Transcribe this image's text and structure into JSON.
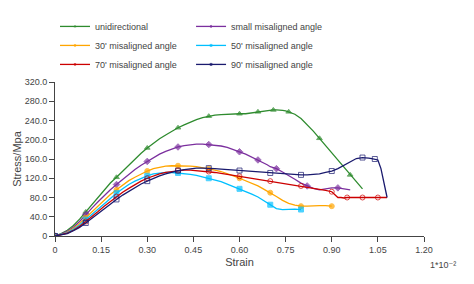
{
  "chart_data": {
    "type": "line",
    "xlabel": "Strain",
    "ylabel": "Stress/Mpa",
    "annotations": [
      "1*10⁻²"
    ],
    "xlim": [
      0,
      1.2
    ],
    "ylim": [
      0,
      320
    ],
    "xticks": [
      0,
      0.15,
      {
        "value": 0.3,
        "label": "0.30"
      },
      0.45,
      {
        "value": 0.6,
        "label": "0.60"
      },
      0.75,
      {
        "value": 0.9,
        "label": "0.90"
      },
      1.05,
      {
        "value": 1.2,
        "label": "1.20"
      }
    ],
    "yticks": [
      0,
      {
        "value": 40.0,
        "label": "40.0"
      },
      {
        "value": 80.0,
        "label": "80.0"
      },
      {
        "value": 120.0,
        "label": "120.0"
      },
      {
        "value": 160.0,
        "label": "160.0"
      },
      {
        "value": 200.0,
        "label": "200.0"
      },
      {
        "value": 240.0,
        "label": "240.0"
      },
      {
        "value": 280.0,
        "label": "280.0"
      },
      {
        "value": 320.0,
        "label": "320.0"
      }
    ],
    "grid": false,
    "legend": "top",
    "series": [
      {
        "name": "unidirectional",
        "color": "#2e8b2e",
        "marker": "triangle-up",
        "x": [
          0,
          0.02,
          0.04,
          0.06,
          0.08,
          0.1,
          0.12,
          0.14,
          0.16,
          0.18,
          0.2,
          0.22,
          0.24,
          0.26,
          0.28,
          0.3,
          0.32,
          0.34,
          0.36,
          0.38,
          0.4,
          0.42,
          0.44,
          0.46,
          0.48,
          0.5,
          0.52,
          0.54,
          0.56,
          0.58,
          0.6,
          0.62,
          0.63,
          0.64,
          0.65,
          0.66,
          0.67,
          0.68,
          0.69,
          0.7,
          0.71,
          0.72,
          0.73,
          0.74,
          0.75,
          0.76,
          0.78,
          0.8,
          0.82,
          0.84,
          0.86,
          0.88,
          0.9,
          0.92,
          0.94,
          0.96,
          0.98,
          1.0
        ],
        "values": [
          0,
          5,
          12,
          22,
          35,
          50,
          65,
          80,
          95,
          110,
          122,
          135,
          148,
          160,
          172,
          183,
          193,
          202,
          210,
          218,
          225,
          231,
          237,
          242,
          246,
          249,
          251,
          252,
          253,
          254,
          254,
          254,
          255,
          256,
          257,
          258,
          259,
          260,
          260,
          261,
          262,
          262,
          262,
          261,
          260,
          258,
          253,
          244,
          232,
          218,
          203,
          188,
          172,
          156,
          141,
          127,
          112,
          98
        ]
      },
      {
        "name": "small misaligned angle",
        "color": "#7B2F9E",
        "marker": "diamond",
        "x": [
          0,
          0.02,
          0.04,
          0.06,
          0.08,
          0.1,
          0.12,
          0.14,
          0.16,
          0.18,
          0.2,
          0.22,
          0.24,
          0.26,
          0.28,
          0.3,
          0.32,
          0.34,
          0.36,
          0.38,
          0.4,
          0.42,
          0.44,
          0.46,
          0.48,
          0.5,
          0.52,
          0.54,
          0.56,
          0.58,
          0.6,
          0.62,
          0.63,
          0.64,
          0.65,
          0.66,
          0.67,
          0.68,
          0.69,
          0.7,
          0.72,
          0.74,
          0.76,
          0.78,
          0.8,
          0.82,
          0.84,
          0.86,
          0.88,
          0.9,
          0.92,
          0.94,
          0.96
        ],
        "values": [
          0,
          4,
          10,
          18,
          30,
          45,
          58,
          71,
          84,
          96,
          107,
          118,
          128,
          138,
          147,
          155,
          163,
          170,
          176,
          181,
          185,
          188,
          190,
          191,
          191,
          190,
          189,
          187,
          184,
          180,
          175,
          170,
          167,
          164,
          161,
          158,
          155,
          151,
          148,
          144,
          140,
          133,
          126,
          118,
          110,
          104,
          99,
          96,
          98,
          100,
          100,
          98,
          96
        ]
      },
      {
        "name": "30' misaligned angle",
        "color": "#FFA500",
        "marker": "circle",
        "x": [
          0,
          0.02,
          0.04,
          0.06,
          0.08,
          0.1,
          0.12,
          0.14,
          0.16,
          0.18,
          0.2,
          0.22,
          0.24,
          0.26,
          0.28,
          0.3,
          0.32,
          0.34,
          0.36,
          0.38,
          0.4,
          0.42,
          0.44,
          0.46,
          0.48,
          0.5,
          0.52,
          0.54,
          0.56,
          0.58,
          0.6,
          0.62,
          0.64,
          0.66,
          0.68,
          0.7,
          0.72,
          0.74,
          0.76,
          0.78,
          0.8,
          0.82,
          0.84,
          0.86,
          0.88,
          0.9
        ],
        "values": [
          0,
          3,
          8,
          16,
          26,
          38,
          50,
          63,
          75,
          86,
          96,
          106,
          115,
          122,
          129,
          135,
          140,
          143,
          145,
          146,
          146,
          146,
          145,
          144,
          142,
          140,
          137,
          134,
          130,
          125,
          120,
          115,
          110,
          104,
          97,
          90,
          82,
          74,
          68,
          64,
          62,
          62,
          63,
          63,
          63,
          62
        ]
      },
      {
        "name": "50' misaligned angle",
        "color": "#00BFFF",
        "marker": "square",
        "x": [
          0,
          0.02,
          0.04,
          0.06,
          0.08,
          0.1,
          0.12,
          0.14,
          0.16,
          0.18,
          0.2,
          0.22,
          0.24,
          0.26,
          0.28,
          0.3,
          0.32,
          0.34,
          0.36,
          0.38,
          0.4,
          0.42,
          0.44,
          0.46,
          0.48,
          0.5,
          0.52,
          0.54,
          0.56,
          0.58,
          0.6,
          0.62,
          0.64,
          0.66,
          0.68,
          0.7,
          0.72,
          0.74,
          0.76,
          0.78,
          0.8
        ],
        "values": [
          0,
          3,
          7,
          14,
          23,
          34,
          45,
          57,
          68,
          79,
          89,
          98,
          107,
          114,
          120,
          125,
          129,
          131,
          132,
          132,
          131,
          130,
          128,
          126,
          123,
          120,
          117,
          113,
          108,
          103,
          98,
          93,
          87,
          81,
          73,
          65,
          57,
          55,
          56,
          56,
          55
        ]
      },
      {
        "name": "70' misaligned angle",
        "color": "#CC0000",
        "marker": "circle-open",
        "x": [
          0,
          0.02,
          0.04,
          0.06,
          0.08,
          0.1,
          0.12,
          0.14,
          0.16,
          0.18,
          0.2,
          0.22,
          0.24,
          0.26,
          0.28,
          0.3,
          0.32,
          0.34,
          0.36,
          0.38,
          0.4,
          0.42,
          0.44,
          0.46,
          0.48,
          0.5,
          0.52,
          0.54,
          0.56,
          0.58,
          0.6,
          0.62,
          0.64,
          0.66,
          0.68,
          0.7,
          0.72,
          0.74,
          0.76,
          0.78,
          0.8,
          0.82,
          0.84,
          0.86,
          0.88,
          0.9,
          0.92,
          0.92,
          0.93,
          0.94,
          0.95,
          0.96,
          0.97,
          0.98,
          0.99,
          1.0,
          1.01,
          1.02,
          1.03,
          1.04,
          1.05,
          1.06,
          1.07,
          1.08
        ],
        "values": [
          0,
          3,
          6,
          12,
          20,
          30,
          40,
          51,
          62,
          72,
          82,
          91,
          99,
          107,
          114,
          120,
          125,
          129,
          132,
          134,
          136,
          137,
          137,
          136,
          135,
          134,
          132,
          130,
          128,
          126,
          124,
          122,
          120,
          118,
          116,
          114,
          112,
          110,
          108,
          106,
          104,
          102,
          100,
          98,
          95,
          92,
          80,
          80,
          80,
          79,
          80,
          80,
          80,
          80,
          80,
          80,
          80,
          79,
          80,
          80,
          80,
          80,
          80,
          80
        ]
      },
      {
        "name": "90' misaligned angle",
        "color": "#1a1a6e",
        "marker": "square-open",
        "x": [
          0,
          0.02,
          0.04,
          0.06,
          0.08,
          0.1,
          0.12,
          0.14,
          0.16,
          0.18,
          0.2,
          0.22,
          0.24,
          0.26,
          0.28,
          0.3,
          0.32,
          0.34,
          0.36,
          0.38,
          0.4,
          0.42,
          0.44,
          0.46,
          0.48,
          0.5,
          0.52,
          0.54,
          0.56,
          0.58,
          0.6,
          0.62,
          0.64,
          0.66,
          0.68,
          0.7,
          0.72,
          0.74,
          0.76,
          0.78,
          0.8,
          0.82,
          0.84,
          0.86,
          0.88,
          0.9,
          0.92,
          0.94,
          0.96,
          0.98,
          1.0,
          1.01,
          1.02,
          1.03,
          1.04,
          1.04,
          1.05,
          1.06,
          1.07,
          1.08
        ],
        "values": [
          0,
          2,
          5,
          11,
          18,
          27,
          37,
          47,
          57,
          67,
          76,
          85,
          93,
          101,
          108,
          114,
          120,
          125,
          129,
          133,
          136,
          138,
          140,
          141,
          141,
          141,
          140,
          139,
          138,
          137,
          136,
          135,
          134,
          133,
          132,
          131,
          130,
          129,
          128,
          127,
          127,
          127,
          128,
          129,
          132,
          135,
          140,
          147,
          155,
          161,
          163,
          163,
          162,
          161,
          160,
          160,
          158,
          140,
          110,
          80
        ]
      }
    ]
  }
}
